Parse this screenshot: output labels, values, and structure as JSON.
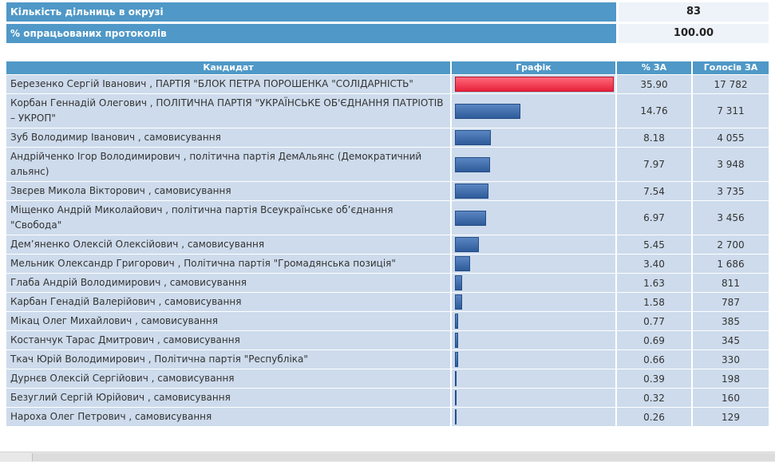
{
  "summary": [
    {
      "label": "Кількість дільниць в окрузі",
      "value": "83"
    },
    {
      "label": "% опрацьованих протоколів",
      "value": "100.00"
    }
  ],
  "headers": {
    "candidate": "Кандидат",
    "chart": "Графік",
    "percent": "% ЗА",
    "votes": "Голосів ЗА"
  },
  "colors": {
    "header_bg": "#4f98c7",
    "row_bg": "#cddbec",
    "bar_blue": "#2e5b9a",
    "bar_red": "#e8213c"
  },
  "rows": [
    {
      "name": "Березенко Сергій Іванович , ПАРТІЯ \"БЛОК ПЕТРА ПОРОШЕНКА \"СОЛІДАРНІСТЬ\"",
      "pct": "35.90",
      "votes": "17 782",
      "pct_value": 35.9
    },
    {
      "name": "Корбан Геннадій Олегович , ПОЛІТИЧНА ПАРТІЯ \"УКРАЇНСЬКЕ ОБ'ЄДНАННЯ ПАТРІОТІВ – УКРОП\"",
      "pct": "14.76",
      "votes": "7 311",
      "pct_value": 14.76
    },
    {
      "name": "Зуб Володимир Іванович , самовисування",
      "pct": "8.18",
      "votes": "4 055",
      "pct_value": 8.18
    },
    {
      "name": "Андрійченко Ігор Володимирович , політична партія ДемАльянс (Демократичний альянс)",
      "pct": "7.97",
      "votes": "3 948",
      "pct_value": 7.97
    },
    {
      "name": "Звєрев Микола Вікторович , самовисування",
      "pct": "7.54",
      "votes": "3 735",
      "pct_value": 7.54
    },
    {
      "name": "Міщенко Андрій Миколайович , політична партія Всеукраїнське об’єднання \"Свобода\"",
      "pct": "6.97",
      "votes": "3 456",
      "pct_value": 6.97
    },
    {
      "name": "Дем’яненко Олексій Олексійович , самовисування",
      "pct": "5.45",
      "votes": "2 700",
      "pct_value": 5.45
    },
    {
      "name": "Мельник Олександр Григорович , Політична партія \"Громадянська позиція\"",
      "pct": "3.40",
      "votes": "1 686",
      "pct_value": 3.4
    },
    {
      "name": "Глаба Андрій Володимирович , самовисування",
      "pct": "1.63",
      "votes": "811",
      "pct_value": 1.63
    },
    {
      "name": "Карбан Генадій Валерійович , самовисування",
      "pct": "1.58",
      "votes": "787",
      "pct_value": 1.58
    },
    {
      "name": "Мікац Олег Михайлович , самовисування",
      "pct": "0.77",
      "votes": "385",
      "pct_value": 0.77
    },
    {
      "name": "Костанчук Тарас Дмитрович , самовисування",
      "pct": "0.69",
      "votes": "345",
      "pct_value": 0.69
    },
    {
      "name": "Ткач Юрій Володимирович , Політична партія \"Республіка\"",
      "pct": "0.66",
      "votes": "330",
      "pct_value": 0.66
    },
    {
      "name": "Дурнєв Олексій Сергійович , самовисування",
      "pct": "0.39",
      "votes": "198",
      "pct_value": 0.39
    },
    {
      "name": "Безуглий Сергій Юрійович , самовисування",
      "pct": "0.32",
      "votes": "160",
      "pct_value": 0.32
    },
    {
      "name": "Нароха Олег Петрович , самовисування",
      "pct": "0.26",
      "votes": "129",
      "pct_value": 0.26
    }
  ]
}
